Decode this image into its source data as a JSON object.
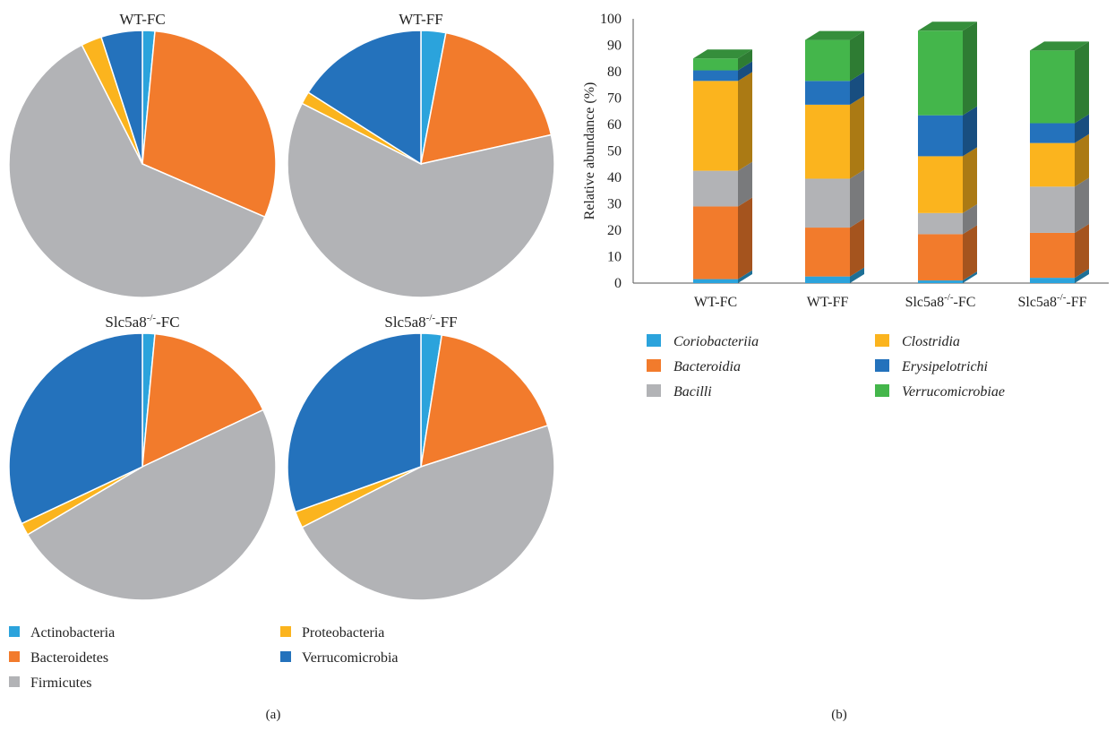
{
  "panel_labels": {
    "a": "(a)",
    "b": "(b)"
  },
  "colors": {
    "Actinobacteria": "#2ba3dc",
    "Bacteroidetes": "#f27b2c",
    "Firmicutes": "#b2b3b6",
    "Proteobacteria": "#fbb41e",
    "Verrucomicrobia": "#2472bc",
    "Coriobacteriia": "#2ba3dc",
    "Bacteroidia": "#f27b2c",
    "Bacilli": "#b2b3b6",
    "Clostridia": "#fbb41e",
    "Erysipelotrichi": "#2472bc",
    "Verrucomicrobiae": "#44b64b"
  },
  "chart_data": [
    {
      "type": "pie",
      "panel": "a",
      "legend": [
        "Actinobacteria",
        "Bacteroidetes",
        "Firmicutes",
        "Proteobacteria",
        "Verrucomicrobia"
      ],
      "legend_placement": "bottom",
      "pies": [
        {
          "title": "WT-FC",
          "slices": [
            {
              "name": "Actinobacteria",
              "value": 1.5
            },
            {
              "name": "Bacteroidetes",
              "value": 30
            },
            {
              "name": "Firmicutes",
              "value": 61
            },
            {
              "name": "Proteobacteria",
              "value": 2.5
            },
            {
              "name": "Verrucomicrobia",
              "value": 5
            }
          ]
        },
        {
          "title": "WT-FF",
          "slices": [
            {
              "name": "Actinobacteria",
              "value": 3
            },
            {
              "name": "Bacteroidetes",
              "value": 18.5
            },
            {
              "name": "Firmicutes",
              "value": 61
            },
            {
              "name": "Proteobacteria",
              "value": 1.5
            },
            {
              "name": "Verrucomicrobia",
              "value": 16
            }
          ]
        },
        {
          "title": "Slc5a8-/--FC",
          "slices": [
            {
              "name": "Actinobacteria",
              "value": 1.5
            },
            {
              "name": "Bacteroidetes",
              "value": 16.5
            },
            {
              "name": "Firmicutes",
              "value": 48.5
            },
            {
              "name": "Proteobacteria",
              "value": 1.5
            },
            {
              "name": "Verrucomicrobia",
              "value": 32
            }
          ]
        },
        {
          "title": "Slc5a8-/--FF",
          "slices": [
            {
              "name": "Actinobacteria",
              "value": 2.5
            },
            {
              "name": "Bacteroidetes",
              "value": 17.5
            },
            {
              "name": "Firmicutes",
              "value": 47.5
            },
            {
              "name": "Proteobacteria",
              "value": 2
            },
            {
              "name": "Verrucomicrobia",
              "value": 30.5
            }
          ]
        }
      ]
    },
    {
      "type": "bar",
      "stacked": true,
      "panel": "b",
      "categories": [
        "WT-FC",
        "WT-FF",
        "Slc5a8-/--FC",
        "Slc5a8-/--FF"
      ],
      "ylabel": "Relative abundance (%)",
      "ylim": [
        0,
        100
      ],
      "yticks": [
        0,
        10,
        20,
        30,
        40,
        50,
        60,
        70,
        80,
        90,
        100
      ],
      "grid": false,
      "legend_placement": "bottom",
      "series": [
        {
          "name": "Coriobacteriia",
          "values": [
            1.5,
            2.5,
            1,
            2
          ]
        },
        {
          "name": "Bacteroidia",
          "values": [
            27.5,
            18.5,
            17.5,
            17
          ]
        },
        {
          "name": "Bacilli",
          "values": [
            13.5,
            18.5,
            8,
            17.5
          ]
        },
        {
          "name": "Clostridia",
          "values": [
            34,
            28,
            21.5,
            16.5
          ]
        },
        {
          "name": "Erysipelotrichi",
          "values": [
            4,
            9,
            15.5,
            7.5
          ]
        },
        {
          "name": "Verrucomicrobiae",
          "values": [
            4.5,
            15.5,
            32,
            27.5
          ]
        }
      ]
    }
  ]
}
